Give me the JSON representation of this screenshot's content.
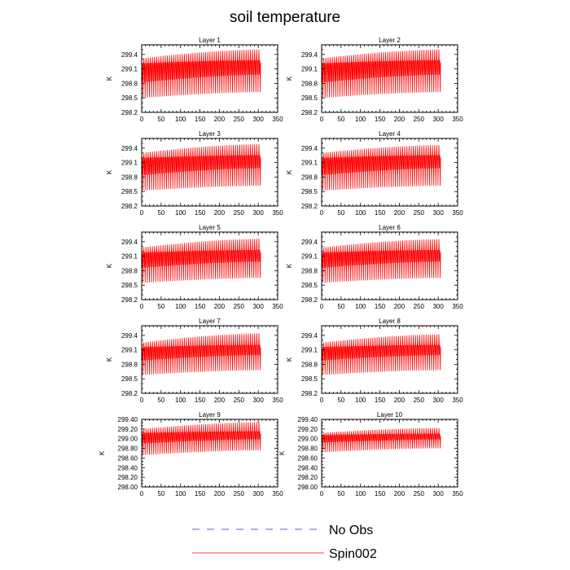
{
  "title": "soil temperature",
  "colors": {
    "spin002": "#ff0000",
    "no_obs": "#2b2bbf",
    "axis": "#000000"
  },
  "legend": [
    {
      "label": "No Obs",
      "style": "dashed",
      "color": "#2b2bbf"
    },
    {
      "label": "Spin002",
      "style": "solid",
      "color": "#ff0000"
    }
  ],
  "chart_data": [
    {
      "type": "line",
      "title": "Layer 1",
      "ylabel": "K",
      "xlim": [
        0,
        350
      ],
      "ylim": [
        298.2,
        299.6
      ],
      "xticks": [
        0,
        50,
        100,
        150,
        200,
        250,
        300,
        350
      ],
      "yticks": [
        298.2,
        298.5,
        298.8,
        299.1,
        299.4
      ],
      "ytick_labels": [
        "298.2",
        "298.5",
        "298.8",
        "299.1",
        "299.4"
      ],
      "series": [
        {
          "name": "Spin002",
          "color": "#ff0000",
          "cycles": 56,
          "x_end": 307,
          "start": 298.2,
          "ymin": [
            298.5,
            298.62
          ],
          "ymax": [
            299.32,
            299.5
          ],
          "inner": [
            298.82,
            299.22
          ]
        }
      ]
    },
    {
      "type": "line",
      "title": "Layer 2",
      "ylabel": "K",
      "xlim": [
        0,
        350
      ],
      "ylim": [
        298.2,
        299.6
      ],
      "xticks": [
        0,
        50,
        100,
        150,
        200,
        250,
        300,
        350
      ],
      "yticks": [
        298.2,
        298.5,
        298.8,
        299.1,
        299.4
      ],
      "ytick_labels": [
        "298.2",
        "298.5",
        "298.8",
        "299.1",
        "299.4"
      ],
      "series": [
        {
          "name": "Spin002",
          "color": "#ff0000",
          "cycles": 56,
          "x_end": 307,
          "start": 298.2,
          "ymin": [
            298.5,
            298.62
          ],
          "ymax": [
            299.32,
            299.5
          ],
          "inner": [
            298.82,
            299.22
          ]
        }
      ]
    },
    {
      "type": "line",
      "title": "Layer 3",
      "ylabel": "K",
      "xlim": [
        0,
        350
      ],
      "ylim": [
        298.2,
        299.6
      ],
      "xticks": [
        0,
        50,
        100,
        150,
        200,
        250,
        300,
        350
      ],
      "yticks": [
        298.2,
        298.5,
        298.8,
        299.1,
        299.4
      ],
      "ytick_labels": [
        "298.2",
        "298.5",
        "298.8",
        "299.1",
        "299.4"
      ],
      "series": [
        {
          "name": "Spin002",
          "color": "#ff0000",
          "cycles": 56,
          "x_end": 307,
          "start": 298.2,
          "ymin": [
            298.52,
            298.62
          ],
          "ymax": [
            299.3,
            299.48
          ],
          "inner": [
            298.84,
            299.2
          ]
        }
      ]
    },
    {
      "type": "line",
      "title": "Layer 4",
      "ylabel": "K",
      "xlim": [
        0,
        350
      ],
      "ylim": [
        298.2,
        299.6
      ],
      "xticks": [
        0,
        50,
        100,
        150,
        200,
        250,
        300,
        350
      ],
      "yticks": [
        298.2,
        298.5,
        298.8,
        299.1,
        299.4
      ],
      "ytick_labels": [
        "298.2",
        "298.5",
        "298.8",
        "299.1",
        "299.4"
      ],
      "series": [
        {
          "name": "Spin002",
          "color": "#ff0000",
          "cycles": 56,
          "x_end": 307,
          "start": 298.2,
          "ymin": [
            298.52,
            298.62
          ],
          "ymax": [
            299.3,
            299.46
          ],
          "inner": [
            298.84,
            299.2
          ]
        }
      ]
    },
    {
      "type": "line",
      "title": "Layer 5",
      "ylabel": "K",
      "xlim": [
        0,
        350
      ],
      "ylim": [
        298.2,
        299.6
      ],
      "xticks": [
        0,
        50,
        100,
        150,
        200,
        250,
        300,
        350
      ],
      "yticks": [
        298.2,
        298.5,
        298.8,
        299.1,
        299.4
      ],
      "ytick_labels": [
        "298.2",
        "298.5",
        "298.8",
        "299.1",
        "299.4"
      ],
      "series": [
        {
          "name": "Spin002",
          "color": "#ff0000",
          "cycles": 56,
          "x_end": 307,
          "start": 298.2,
          "ymin": [
            298.55,
            298.65
          ],
          "ymax": [
            299.28,
            299.46
          ],
          "inner": [
            298.86,
            299.18
          ]
        }
      ]
    },
    {
      "type": "line",
      "title": "Layer 6",
      "ylabel": "K",
      "xlim": [
        0,
        350
      ],
      "ylim": [
        298.2,
        299.6
      ],
      "xticks": [
        0,
        50,
        100,
        150,
        200,
        250,
        300,
        350
      ],
      "yticks": [
        298.2,
        298.5,
        298.8,
        299.1,
        299.4
      ],
      "ytick_labels": [
        "298.2",
        "298.5",
        "298.8",
        "299.1",
        "299.4"
      ],
      "series": [
        {
          "name": "Spin002",
          "color": "#ff0000",
          "cycles": 56,
          "x_end": 307,
          "start": 298.2,
          "ymin": [
            298.55,
            298.65
          ],
          "ymax": [
            299.28,
            299.45
          ],
          "inner": [
            298.86,
            299.18
          ]
        }
      ]
    },
    {
      "type": "line",
      "title": "Layer 7",
      "ylabel": "K",
      "xlim": [
        0,
        350
      ],
      "ylim": [
        298.2,
        299.6
      ],
      "xticks": [
        0,
        50,
        100,
        150,
        200,
        250,
        300,
        350
      ],
      "yticks": [
        298.2,
        298.5,
        298.8,
        299.1,
        299.4
      ],
      "ytick_labels": [
        "298.2",
        "298.5",
        "298.8",
        "299.1",
        "299.4"
      ],
      "series": [
        {
          "name": "Spin002",
          "color": "#ff0000",
          "cycles": 56,
          "x_end": 307,
          "start": 298.2,
          "ymin": [
            298.58,
            298.68
          ],
          "ymax": [
            299.25,
            299.44
          ],
          "inner": [
            298.88,
            299.16
          ]
        }
      ]
    },
    {
      "type": "line",
      "title": "Layer 8",
      "ylabel": "K",
      "xlim": [
        0,
        350
      ],
      "ylim": [
        298.2,
        299.6
      ],
      "xticks": [
        0,
        50,
        100,
        150,
        200,
        250,
        300,
        350
      ],
      "yticks": [
        298.2,
        298.5,
        298.8,
        299.1,
        299.4
      ],
      "ytick_labels": [
        "298.2",
        "298.5",
        "298.8",
        "299.1",
        "299.4"
      ],
      "series": [
        {
          "name": "Spin002",
          "color": "#ff0000",
          "cycles": 56,
          "x_end": 307,
          "start": 298.2,
          "ymin": [
            298.58,
            298.68
          ],
          "ymax": [
            299.25,
            299.42
          ],
          "inner": [
            298.88,
            299.16
          ]
        }
      ]
    },
    {
      "type": "line",
      "title": "Layer 9",
      "ylabel": "K",
      "xlim": [
        0,
        350
      ],
      "ylim": [
        298.0,
        299.4
      ],
      "xticks": [
        0,
        50,
        100,
        150,
        200,
        250,
        300,
        350
      ],
      "yticks": [
        298.0,
        298.2,
        298.4,
        298.6,
        298.8,
        299.0,
        299.2,
        299.4
      ],
      "ytick_labels": [
        "298.00",
        "298.20",
        "298.40",
        "298.60",
        "298.80",
        "299.00",
        "299.20",
        "299.40"
      ],
      "series": [
        {
          "name": "Spin002",
          "color": "#ff0000",
          "cycles": 56,
          "x_end": 307,
          "start": 298.0,
          "ymin": [
            298.66,
            298.76
          ],
          "ymax": [
            299.2,
            299.34
          ],
          "inner": [
            298.9,
            299.12
          ]
        }
      ]
    },
    {
      "type": "line",
      "title": "Layer 10",
      "ylabel": "K",
      "xlim": [
        0,
        350
      ],
      "ylim": [
        298.0,
        299.4
      ],
      "xticks": [
        0,
        50,
        100,
        150,
        200,
        250,
        300,
        350
      ],
      "yticks": [
        298.0,
        298.2,
        298.4,
        298.6,
        298.8,
        299.0,
        299.2,
        299.4
      ],
      "ytick_labels": [
        "298.00",
        "298.20",
        "298.40",
        "298.60",
        "298.80",
        "299.00",
        "299.20",
        "299.40"
      ],
      "series": [
        {
          "name": "Spin002",
          "color": "#ff0000",
          "cycles": 56,
          "x_end": 307,
          "start": 298.0,
          "ymin": [
            298.72,
            298.8
          ],
          "ymax": [
            299.12,
            299.22
          ],
          "inner": [
            298.92,
            299.08
          ]
        }
      ]
    }
  ]
}
